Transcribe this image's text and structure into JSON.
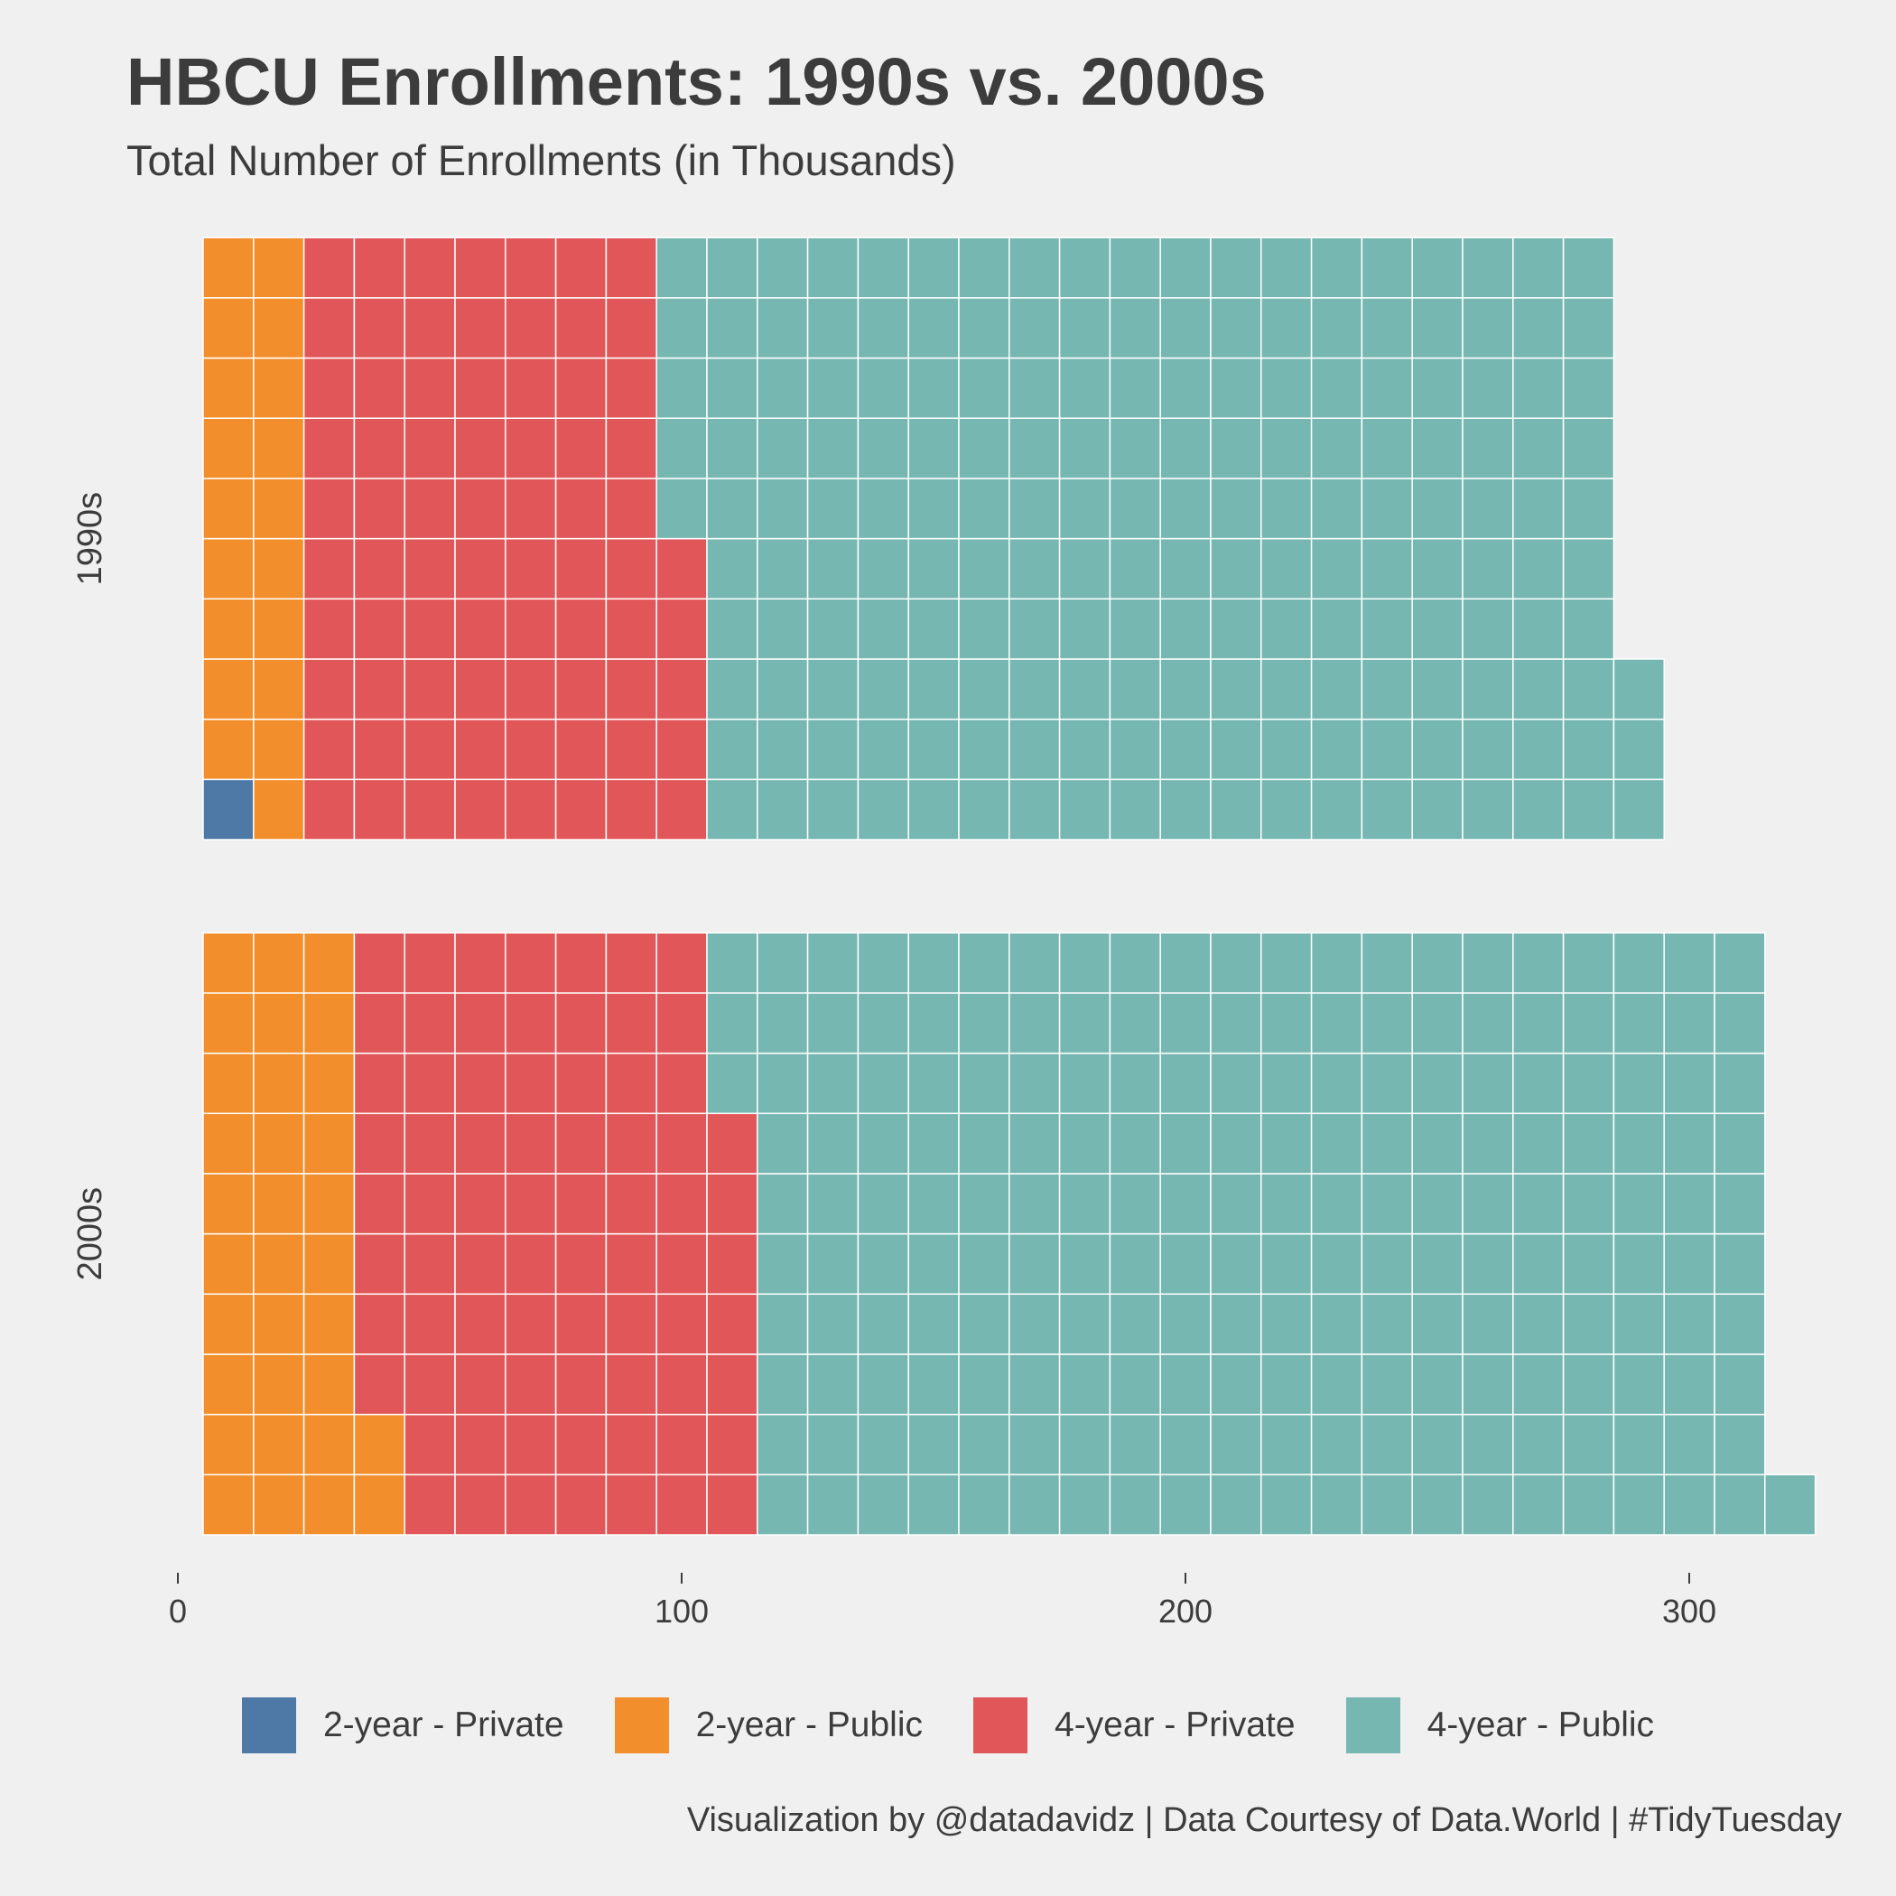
{
  "title": "HBCU Enrollments: 1990s vs. 2000s",
  "subtitle": "Total Number of Enrollments (in Thousands)",
  "caption": "Visualization by @datadavidz | Data Courtesy of Data.World | #TidyTuesday",
  "colors": {
    "background": "#f0f0f0",
    "cell_border": "#ffffff",
    "text": "#3c3c3c"
  },
  "legend": [
    {
      "label": "2-year - Private",
      "color": "#4e79a7"
    },
    {
      "label": "2-year - Public",
      "color": "#f28e2b"
    },
    {
      "label": "4-year - Private",
      "color": "#e15759"
    },
    {
      "label": "4-year - Public",
      "color": "#76b7b2"
    }
  ],
  "chart_data": {
    "type": "waffle",
    "rows_per_column": 10,
    "unit": "1,000 enrollments per square",
    "x_ticks": [
      0,
      100,
      200,
      300
    ],
    "categories": [
      "2-year - Private",
      "2-year - Public",
      "4-year - Private",
      "4-year - Public"
    ],
    "panels": [
      {
        "label": "1990s",
        "values": [
          1,
          19,
          75,
          188
        ]
      },
      {
        "label": "2000s",
        "values": [
          0,
          32,
          75,
          204
        ]
      }
    ],
    "legend_position": "bottom",
    "grid": false
  }
}
